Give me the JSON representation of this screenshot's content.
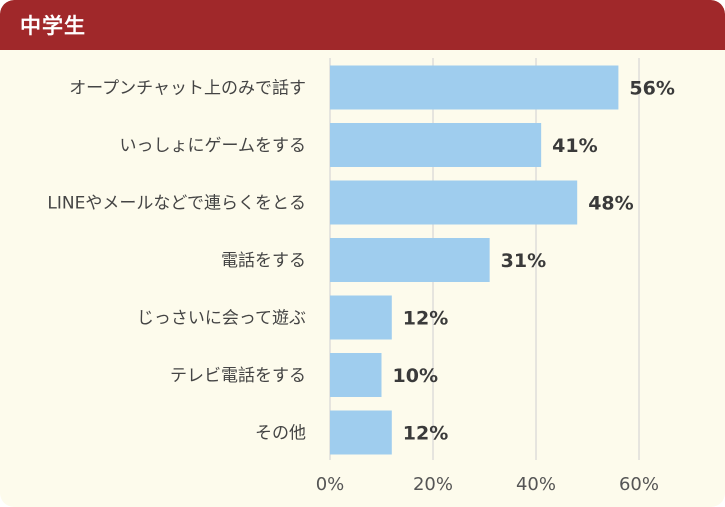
{
  "header": {
    "title": "中学生"
  },
  "colors": {
    "header": "#a0282a",
    "background": "#fdfbec",
    "bar": "#9fcdee",
    "grid": "#d6d6d6",
    "text": "#3a3a3a"
  },
  "chart_data": {
    "type": "bar",
    "orientation": "horizontal",
    "title": "",
    "xlabel": "",
    "ylabel": "",
    "categories": [
      "オープンチャット上のみで話す",
      "いっしょにゲームをする",
      "LINEやメールなどで連らくをとる",
      "電話をする",
      "じっさいに会って遊ぶ",
      "テレビ電話をする",
      "その他"
    ],
    "values": [
      56,
      41,
      48,
      31,
      12,
      10,
      12
    ],
    "value_labels": [
      "56%",
      "41%",
      "48%",
      "31%",
      "12%",
      "10%",
      "12%"
    ],
    "xlim": [
      0,
      60
    ],
    "x_ticks": [
      0,
      20,
      40,
      60
    ],
    "x_tick_labels": [
      "0%",
      "20%",
      "40%",
      "60%"
    ],
    "grid": true,
    "legend": "none"
  }
}
